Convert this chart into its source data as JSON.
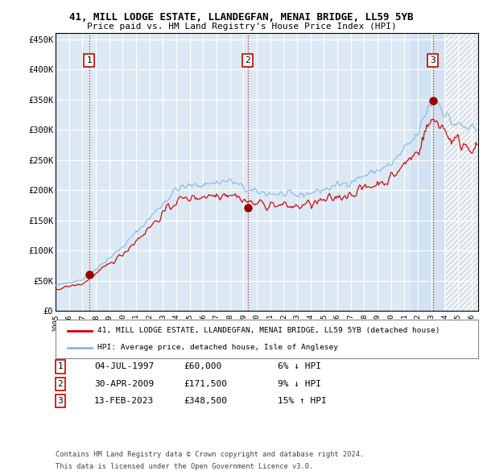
{
  "title": "41, MILL LODGE ESTATE, LLANDEGFAN, MENAI BRIDGE, LL59 5YB",
  "subtitle": "Price paid vs. HM Land Registry's House Price Index (HPI)",
  "ylim": [
    0,
    460000
  ],
  "yticks": [
    0,
    50000,
    100000,
    150000,
    200000,
    250000,
    300000,
    350000,
    400000,
    450000
  ],
  "ytick_labels": [
    "£0",
    "£50K",
    "£100K",
    "£150K",
    "£200K",
    "£250K",
    "£300K",
    "£350K",
    "£400K",
    "£450K"
  ],
  "xlim_start": 1995.0,
  "xlim_end": 2026.5,
  "background_color": "#dce9f5",
  "grid_color": "#ffffff",
  "hpi_line_color": "#89b8de",
  "price_line_color": "#cc0000",
  "sale_marker_color": "#990000",
  "vline_color": "#cc0000",
  "highlight_region_start": 2021.5,
  "highlight_region_end": 2024.0,
  "hatch_region_start": 2024.0,
  "hatch_region_end": 2026.5,
  "sale_events": [
    {
      "label": "1",
      "date_str": "04-JUL-1997",
      "year": 1997.51,
      "price": 60000,
      "pct": "6%",
      "direction": "↓"
    },
    {
      "label": "2",
      "date_str": "30-APR-2009",
      "year": 2009.33,
      "price": 171500,
      "pct": "9%",
      "direction": "↓"
    },
    {
      "label": "3",
      "date_str": "13-FEB-2023",
      "year": 2023.12,
      "price": 348500,
      "pct": "15%",
      "direction": "↑"
    }
  ],
  "legend_property_label": "41, MILL LODGE ESTATE, LLANDEGFAN, MENAI BRIDGE, LL59 5YB (detached house)",
  "legend_hpi_label": "HPI: Average price, detached house, Isle of Anglesey",
  "footer_line1": "Contains HM Land Registry data © Crown copyright and database right 2024.",
  "footer_line2": "This data is licensed under the Open Government Licence v3.0."
}
